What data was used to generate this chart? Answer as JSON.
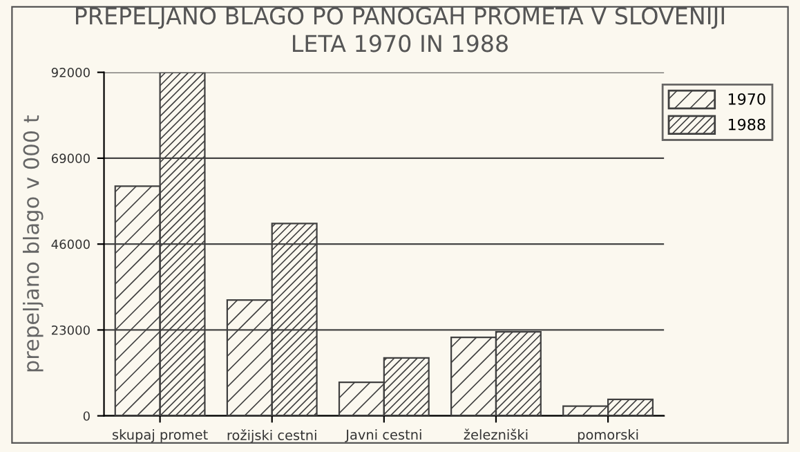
{
  "chart_data": {
    "type": "bar",
    "title": "PREPELJANO BLAGO PO PANOGAH PROMETA V SLOVENIJI\nLETA 1970 IN 1988",
    "ylabel": "prepeljano blago v 000 t",
    "categories": [
      "skupaj promet",
      "rožijski cestni",
      "Javni cestni",
      "železniški",
      "pomorski"
    ],
    "series": [
      {
        "name": "1970",
        "color": "#404040",
        "values": [
          61500,
          31000,
          9000,
          21000,
          2600
        ]
      },
      {
        "name": "1988",
        "color": "#404040",
        "values": [
          92000,
          51500,
          15500,
          22500,
          4400
        ]
      }
    ],
    "ylim": [
      0,
      92000
    ],
    "yticks": [
      0,
      23000,
      46000,
      69000,
      92000
    ],
    "grid": "y",
    "legend": "top right"
  }
}
